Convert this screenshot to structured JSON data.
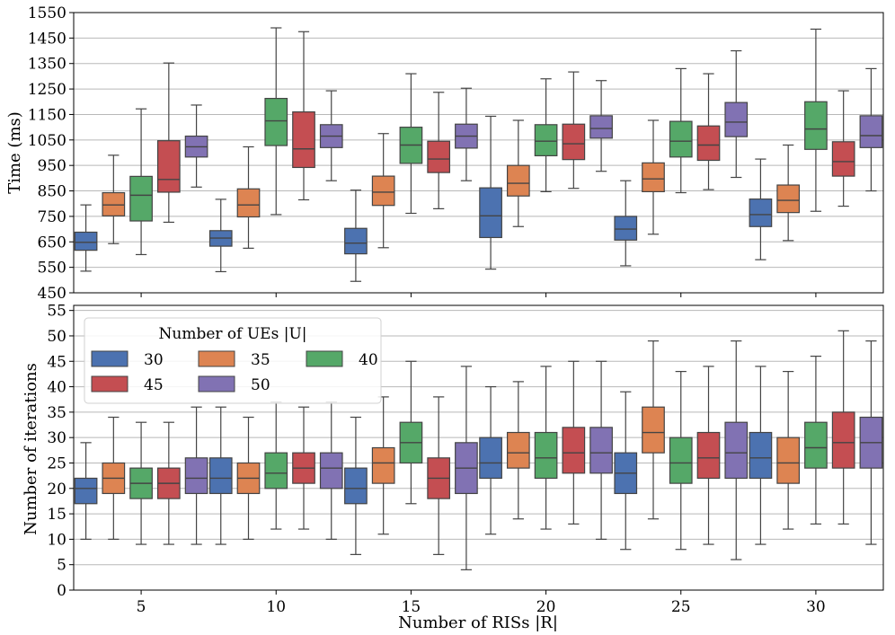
{
  "chart_data": [
    {
      "type": "boxplot",
      "ylabel": "Time (ms)",
      "xlabel": "",
      "ylim": [
        450,
        1550
      ],
      "yticks": [
        450,
        550,
        650,
        750,
        850,
        950,
        1050,
        1150,
        1250,
        1350,
        1450,
        1550
      ],
      "grid": "horizontal",
      "categories": [
        "5",
        "10",
        "15",
        "20",
        "25",
        "30"
      ],
      "series": [
        {
          "name": "30",
          "color": "#4c72b0",
          "boxes": [
            {
              "whislo": 535,
              "q1": 617,
              "med": 648,
              "q3": 688,
              "whishi": 795
            },
            {
              "whislo": 533,
              "q1": 633,
              "med": 665,
              "q3": 694,
              "whishi": 817
            },
            {
              "whislo": 495,
              "q1": 603,
              "med": 645,
              "q3": 703,
              "whishi": 853
            },
            {
              "whislo": 543,
              "q1": 667,
              "med": 752,
              "q3": 862,
              "whishi": 1143
            },
            {
              "whislo": 556,
              "q1": 657,
              "med": 700,
              "q3": 750,
              "whishi": 890
            },
            {
              "whislo": 580,
              "q1": 710,
              "med": 757,
              "q3": 818,
              "whishi": 975
            }
          ]
        },
        {
          "name": "35",
          "color": "#dd8452",
          "boxes": [
            {
              "whislo": 643,
              "q1": 752,
              "med": 795,
              "q3": 843,
              "whishi": 990
            },
            {
              "whislo": 625,
              "q1": 748,
              "med": 795,
              "q3": 858,
              "whishi": 1023
            },
            {
              "whislo": 627,
              "q1": 793,
              "med": 845,
              "q3": 908,
              "whishi": 1075
            },
            {
              "whislo": 710,
              "q1": 830,
              "med": 880,
              "q3": 950,
              "whishi": 1127
            },
            {
              "whislo": 680,
              "q1": 847,
              "med": 897,
              "q3": 960,
              "whishi": 1127
            },
            {
              "whislo": 655,
              "q1": 765,
              "med": 813,
              "q3": 873,
              "whishi": 1030
            }
          ]
        },
        {
          "name": "40",
          "color": "#55a868",
          "boxes": [
            {
              "whislo": 600,
              "q1": 732,
              "med": 833,
              "q3": 907,
              "whishi": 1172
            },
            {
              "whislo": 757,
              "q1": 1028,
              "med": 1125,
              "q3": 1213,
              "whishi": 1490
            },
            {
              "whislo": 762,
              "q1": 958,
              "med": 1030,
              "q3": 1100,
              "whishi": 1310
            },
            {
              "whislo": 847,
              "q1": 988,
              "med": 1045,
              "q3": 1110,
              "whishi": 1290
            },
            {
              "whislo": 843,
              "q1": 983,
              "med": 1045,
              "q3": 1123,
              "whishi": 1330
            },
            {
              "whislo": 770,
              "q1": 1013,
              "med": 1093,
              "q3": 1200,
              "whishi": 1485
            }
          ]
        },
        {
          "name": "45",
          "color": "#c44e52",
          "boxes": [
            {
              "whislo": 727,
              "q1": 845,
              "med": 895,
              "q3": 1047,
              "whishi": 1352
            },
            {
              "whislo": 815,
              "q1": 942,
              "med": 1015,
              "q3": 1160,
              "whishi": 1475
            },
            {
              "whislo": 780,
              "q1": 922,
              "med": 975,
              "q3": 1045,
              "whishi": 1237
            },
            {
              "whislo": 860,
              "q1": 973,
              "med": 1035,
              "q3": 1112,
              "whishi": 1317
            },
            {
              "whislo": 855,
              "q1": 970,
              "med": 1030,
              "q3": 1105,
              "whishi": 1310
            },
            {
              "whislo": 790,
              "q1": 908,
              "med": 965,
              "q3": 1043,
              "whishi": 1243
            }
          ]
        },
        {
          "name": "50",
          "color": "#8172b3",
          "boxes": [
            {
              "whislo": 865,
              "q1": 983,
              "med": 1023,
              "q3": 1065,
              "whishi": 1187
            },
            {
              "whislo": 890,
              "q1": 1020,
              "med": 1065,
              "q3": 1110,
              "whishi": 1243
            },
            {
              "whislo": 890,
              "q1": 1018,
              "med": 1065,
              "q3": 1112,
              "whishi": 1253
            },
            {
              "whislo": 927,
              "q1": 1057,
              "med": 1095,
              "q3": 1145,
              "whishi": 1283
            },
            {
              "whislo": 903,
              "q1": 1063,
              "med": 1120,
              "q3": 1197,
              "whishi": 1400
            },
            {
              "whislo": 850,
              "q1": 1020,
              "med": 1067,
              "q3": 1145,
              "whishi": 1330
            }
          ]
        }
      ]
    },
    {
      "type": "boxplot",
      "ylabel": "Number of iterations",
      "xlabel": "Number of RISs |R|",
      "ylim": [
        0,
        56
      ],
      "yticks": [
        0,
        5,
        10,
        15,
        20,
        25,
        30,
        35,
        40,
        45,
        50,
        55
      ],
      "grid": "horizontal",
      "categories": [
        "5",
        "10",
        "15",
        "20",
        "25",
        "30"
      ],
      "legend": {
        "title": "Number of UEs |U|",
        "placement": "top-left",
        "entries": [
          "30",
          "35",
          "40",
          "45",
          "50"
        ]
      },
      "series": [
        {
          "name": "30",
          "color": "#4c72b0",
          "boxes": [
            {
              "whislo": 10,
              "q1": 17,
              "med": 20,
              "q3": 22,
              "whishi": 29
            },
            {
              "whislo": 9,
              "q1": 19,
              "med": 22,
              "q3": 26,
              "whishi": 36
            },
            {
              "whislo": 7,
              "q1": 17,
              "med": 20,
              "q3": 24,
              "whishi": 34
            },
            {
              "whislo": 11,
              "q1": 22,
              "med": 25,
              "q3": 30,
              "whishi": 40
            },
            {
              "whislo": 8,
              "q1": 19,
              "med": 23,
              "q3": 27,
              "whishi": 39
            },
            {
              "whislo": 9,
              "q1": 22,
              "med": 26,
              "q3": 31,
              "whishi": 44
            }
          ]
        },
        {
          "name": "35",
          "color": "#dd8452",
          "boxes": [
            {
              "whislo": 10,
              "q1": 19,
              "med": 22,
              "q3": 25,
              "whishi": 34
            },
            {
              "whislo": 10,
              "q1": 19,
              "med": 22,
              "q3": 25,
              "whishi": 34
            },
            {
              "whislo": 11,
              "q1": 21,
              "med": 25,
              "q3": 28,
              "whishi": 38
            },
            {
              "whislo": 14,
              "q1": 24,
              "med": 27,
              "q3": 31,
              "whishi": 41
            },
            {
              "whislo": 14,
              "q1": 27,
              "med": 31,
              "q3": 36,
              "whishi": 49
            },
            {
              "whislo": 12,
              "q1": 21,
              "med": 25,
              "q3": 30,
              "whishi": 43
            }
          ]
        },
        {
          "name": "40",
          "color": "#55a868",
          "boxes": [
            {
              "whislo": 9,
              "q1": 18,
              "med": 21,
              "q3": 24,
              "whishi": 33
            },
            {
              "whislo": 12,
              "q1": 20,
              "med": 23,
              "q3": 27,
              "whishi": 37
            },
            {
              "whislo": 17,
              "q1": 25,
              "med": 29,
              "q3": 33,
              "whishi": 45
            },
            {
              "whislo": 12,
              "q1": 22,
              "med": 26,
              "q3": 31,
              "whishi": 44
            },
            {
              "whislo": 8,
              "q1": 21,
              "med": 25,
              "q3": 30,
              "whishi": 43
            },
            {
              "whislo": 13,
              "q1": 24,
              "med": 28,
              "q3": 33,
              "whishi": 46
            }
          ]
        },
        {
          "name": "45",
          "color": "#c44e52",
          "boxes": [
            {
              "whislo": 9,
              "q1": 18,
              "med": 21,
              "q3": 24,
              "whishi": 33
            },
            {
              "whislo": 12,
              "q1": 21,
              "med": 24,
              "q3": 27,
              "whishi": 36
            },
            {
              "whislo": 7,
              "q1": 18,
              "med": 22,
              "q3": 26,
              "whishi": 38
            },
            {
              "whislo": 13,
              "q1": 23,
              "med": 27,
              "q3": 32,
              "whishi": 45
            },
            {
              "whislo": 9,
              "q1": 22,
              "med": 26,
              "q3": 31,
              "whishi": 44
            },
            {
              "whislo": 13,
              "q1": 24,
              "med": 29,
              "q3": 35,
              "whishi": 51
            }
          ]
        },
        {
          "name": "50",
          "color": "#8172b3",
          "boxes": [
            {
              "whislo": 9,
              "q1": 19,
              "med": 22,
              "q3": 26,
              "whishi": 36
            },
            {
              "whislo": 10,
              "q1": 20,
              "med": 24,
              "q3": 27,
              "whishi": 37
            },
            {
              "whislo": 4,
              "q1": 19,
              "med": 24,
              "q3": 29,
              "whishi": 44
            },
            {
              "whislo": 10,
              "q1": 23,
              "med": 27,
              "q3": 32,
              "whishi": 45
            },
            {
              "whislo": 6,
              "q1": 22,
              "med": 27,
              "q3": 33,
              "whishi": 49
            },
            {
              "whislo": 9,
              "q1": 24,
              "med": 29,
              "q3": 34,
              "whishi": 49
            }
          ]
        }
      ]
    }
  ]
}
